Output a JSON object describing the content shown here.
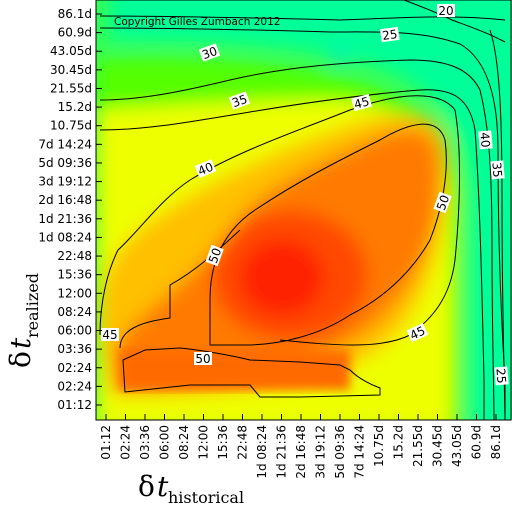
{
  "chart_data": {
    "type": "heatmap",
    "title": "",
    "copyright": "Copyright Gilles Zumbach 2012",
    "xlabel": {
      "symbol": "δ",
      "variable": "t",
      "subscript": "historical"
    },
    "ylabel": {
      "symbol": "δ",
      "variable": "t",
      "subscript": "realized"
    },
    "x_ticks": [
      "01:12",
      "02:24",
      "03:36",
      "06:00",
      "08:24",
      "12:00",
      "15:36",
      "22:48",
      "1d 08:24",
      "1d 21:36",
      "2d 16:48",
      "3d 19:12",
      "5d 09:36",
      "7d 14:24",
      "10.75d",
      "15.2d",
      "21.55d",
      "30.45d",
      "43.05d",
      "60.9d",
      "86.1d"
    ],
    "y_ticks": [
      "01:12",
      "02:24",
      "02:24",
      "03:36",
      "06:00",
      "08:24",
      "12:00",
      "15:36",
      "22:48",
      "1d 08:24",
      "1d 21:36",
      "2d 16:48",
      "3d 19:12",
      "5d 09:36",
      "7d 14:24",
      "10.75d",
      "15.2d",
      "21.55d",
      "30.45d",
      "43.05d",
      "60.9d",
      "86.1d"
    ],
    "contour_levels": [
      20,
      25,
      30,
      35,
      40,
      45,
      50
    ],
    "value_range": [
      15,
      56
    ],
    "colormap": [
      "#0000ff",
      "#00c8ff",
      "#00ff80",
      "#40ff00",
      "#ffff00",
      "#ffa000",
      "#ff3000"
    ],
    "contour_labels": [
      {
        "text": "20",
        "level": 20
      },
      {
        "text": "25",
        "level": 25
      },
      {
        "text": "30",
        "level": 30
      },
      {
        "text": "35",
        "level": 35
      },
      {
        "text": "45",
        "level": 45
      },
      {
        "text": "40",
        "level": 40
      },
      {
        "text": "40",
        "level": 40
      },
      {
        "text": "35",
        "level": 35
      },
      {
        "text": "50",
        "level": 50
      },
      {
        "text": "50",
        "level": 50
      },
      {
        "text": "45",
        "level": 45
      },
      {
        "text": "45",
        "level": 45
      },
      {
        "text": "50",
        "level": 50
      },
      {
        "text": "25",
        "level": 25
      }
    ]
  }
}
